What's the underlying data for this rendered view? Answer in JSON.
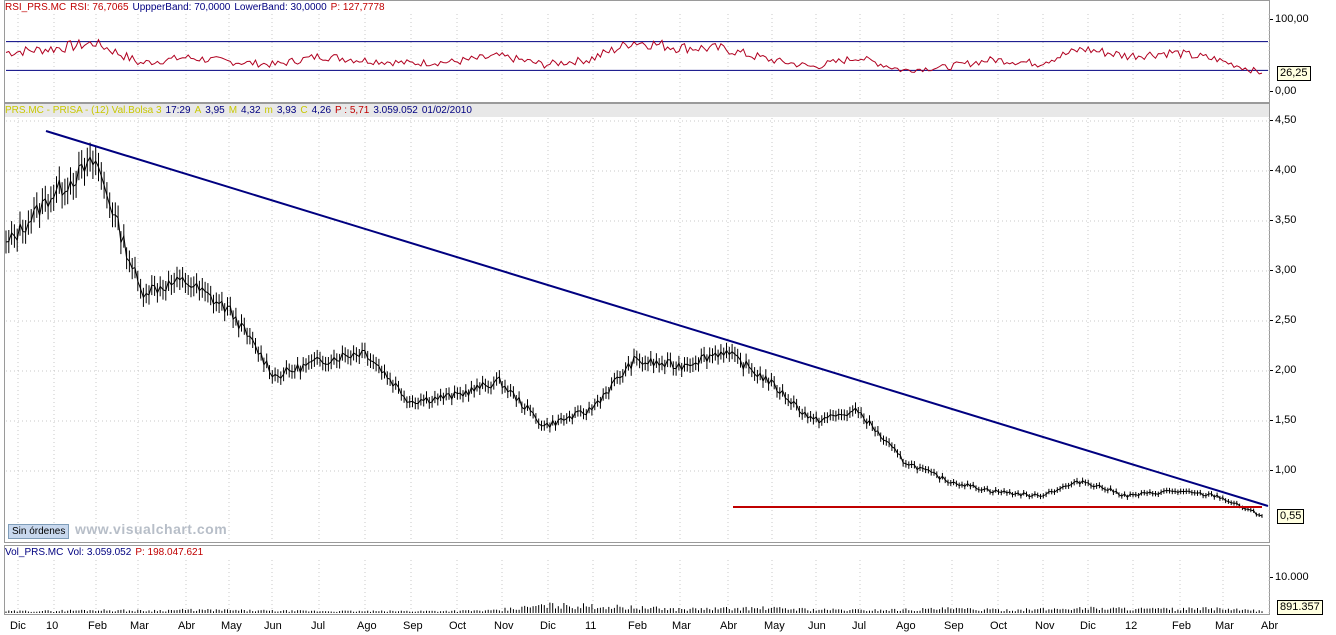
{
  "rsi_panel": {
    "header": [
      {
        "text": "RSI_PRS.MC",
        "color": "#c00000"
      },
      {
        "text": "RSI: 76,7065",
        "color": "#c00000"
      },
      {
        "text": "UppperBand: 70,0000",
        "color": "#000080"
      },
      {
        "text": "LowerBand: 30,0000",
        "color": "#000080"
      },
      {
        "text": "P: 127,7778",
        "color": "#c00000"
      }
    ],
    "ticks": [
      "100,00",
      "0,00"
    ],
    "current_value": "26,25"
  },
  "price_panel": {
    "header": [
      {
        "text": "PRS.MC - PRISA - (12) Val.Bolsa 3",
        "color": "#c8c800"
      },
      {
        "text": "17:29",
        "color": "#000080"
      },
      {
        "text": "A",
        "color": "#c8c800"
      },
      {
        "text": "3,95",
        "color": "#000080"
      },
      {
        "text": "M",
        "color": "#c8c800"
      },
      {
        "text": "4,32",
        "color": "#000080"
      },
      {
        "text": "m",
        "color": "#c8c800"
      },
      {
        "text": "3,93",
        "color": "#000080"
      },
      {
        "text": "C",
        "color": "#c8c800"
      },
      {
        "text": "4,26",
        "color": "#000080"
      },
      {
        "text": "P : 5,71",
        "color": "#c00000"
      },
      {
        "text": "3.059.052",
        "color": "#000080"
      },
      {
        "text": "01/02/2010",
        "color": "#000080"
      }
    ],
    "ticks": [
      "4,50",
      "4,00",
      "3,50",
      "3,00",
      "2,50",
      "2,00",
      "1,50",
      "1,00",
      "0,55"
    ],
    "current_value": "0,55",
    "order_button": "Sin órdenes",
    "watermark": "www.visualchart.com"
  },
  "volume_panel": {
    "header": [
      {
        "text": "Vol_PRS.MC",
        "color": "#000080"
      },
      {
        "text": "Vol: 3.059.052",
        "color": "#000080"
      },
      {
        "text": "P: 198.047.621",
        "color": "#c00000"
      }
    ],
    "ticks": [
      "10.000"
    ],
    "current_value": "891.357"
  },
  "x_axis": [
    "Dic",
    "10",
    "Feb",
    "Mar",
    "Abr",
    "May",
    "Jun",
    "Jul",
    "Ago",
    "Sep",
    "Oct",
    "Nov",
    "Dic",
    "11",
    "Feb",
    "Mar",
    "Abr",
    "May",
    "Jun",
    "Jul",
    "Ago",
    "Sep",
    "Oct",
    "Nov",
    "Dic",
    "12",
    "Feb",
    "Mar",
    "Abr"
  ],
  "chart_data": {
    "type": "line",
    "title": "PRS.MC - PRISA",
    "x": [
      "Dic 2009",
      "Ene 2010",
      "Feb 2010",
      "Mar 2010",
      "Abr 2010",
      "May 2010",
      "Jun 2010",
      "Jul 2010",
      "Ago 2010",
      "Sep 2010",
      "Oct 2010",
      "Nov 2010",
      "Dic 2010",
      "Ene 2011",
      "Feb 2011",
      "Mar 2011",
      "Abr 2011",
      "May 2011",
      "Jun 2011",
      "Jul 2011",
      "Ago 2011",
      "Sep 2011",
      "Oct 2011",
      "Nov 2011",
      "Dic 2011",
      "Ene 2012",
      "Feb 2012",
      "Mar 2012",
      "Abr 2012"
    ],
    "series": [
      {
        "name": "PRS.MC",
        "values": [
          3.25,
          3.75,
          4.1,
          2.8,
          2.9,
          2.6,
          1.95,
          2.1,
          2.2,
          1.7,
          1.75,
          1.9,
          1.45,
          1.6,
          2.1,
          2.05,
          2.2,
          1.9,
          1.5,
          1.6,
          1.1,
          0.9,
          0.8,
          0.75,
          0.9,
          0.75,
          0.8,
          0.75,
          0.55
        ]
      },
      {
        "name": "RSI",
        "values": [
          55,
          60,
          68,
          40,
          48,
          42,
          38,
          50,
          44,
          40,
          42,
          50,
          38,
          45,
          70,
          62,
          60,
          45,
          35,
          48,
          30,
          35,
          45,
          40,
          60,
          50,
          55,
          45,
          26.25
        ]
      },
      {
        "name": "Vol",
        "values": [
          900,
          1100,
          1500,
          1200,
          1600,
          1400,
          1100,
          1000,
          900,
          1000,
          1100,
          1300,
          4000,
          3500,
          2800,
          2000,
          2200,
          2500,
          1800,
          1500,
          1700,
          2200,
          1600,
          1800,
          2500,
          2200,
          1900,
          2300,
          891.357
        ]
      }
    ],
    "ylim": [
      0.3,
      4.5
    ],
    "rsi_bands": [
      30,
      70
    ],
    "trendline_start": {
      "x": "Dic 2009",
      "y": 4.4
    },
    "trendline_end": {
      "x": "Abr 2012",
      "y": 0.65
    },
    "support_level": 0.64,
    "colors": {
      "price": "#000000",
      "rsi": "#b00020",
      "trendline": "#000080",
      "support": "#c00000",
      "volume": "#000000"
    }
  }
}
